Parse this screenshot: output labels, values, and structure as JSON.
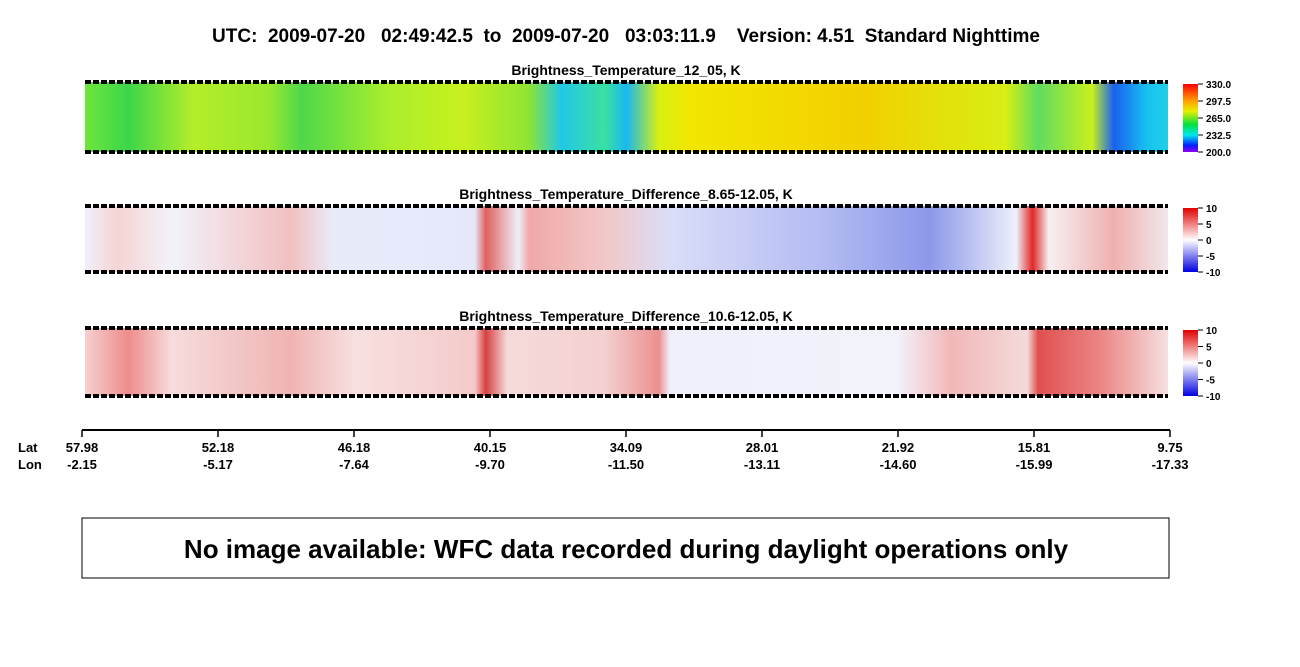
{
  "header": {
    "title": "UTC:  2009-07-20   02:49:42.5  to  2009-07-20   03:03:11.9    Version: 4.51  Standard Nighttime"
  },
  "panels": [
    {
      "title": "Brightness_Temperature_12_05, K",
      "colorbar_labels": [
        "330.0",
        "297.5",
        "265.0",
        "232.5",
        "200.0"
      ]
    },
    {
      "title": "Brightness_Temperature_Difference_8.65-12.05, K",
      "colorbar_labels": [
        "10",
        "5",
        "0",
        "-5",
        "-10"
      ]
    },
    {
      "title": "Brightness_Temperature_Difference_10.6-12.05, K",
      "colorbar_labels": [
        "10",
        "5",
        "0",
        "-5",
        "-10"
      ]
    }
  ],
  "axis": {
    "lat_label": "Lat",
    "lon_label": "Lon",
    "lat": [
      "57.98",
      "52.18",
      "46.18",
      "40.15",
      "34.09",
      "28.01",
      "21.92",
      "15.81",
      "9.75"
    ],
    "lon": [
      "-2.15",
      "-5.17",
      "-7.64",
      "-9.70",
      "-11.50",
      "-13.11",
      "-14.60",
      "-15.99",
      "-17.33"
    ]
  },
  "notice": "No image available: WFC data recorded during daylight operations only"
}
